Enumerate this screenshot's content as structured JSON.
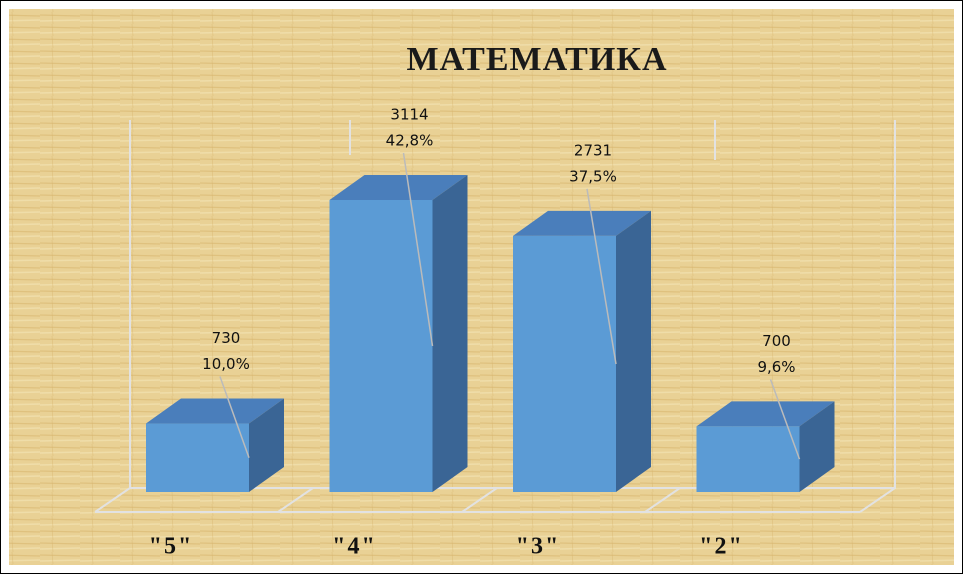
{
  "chart_data": {
    "type": "bar3d",
    "title": "МАТЕМАТИКА",
    "categories": [
      "\"5\"",
      "\"4\"",
      "\"3\"",
      "\"2\""
    ],
    "values": [
      730,
      3114,
      2731,
      700
    ],
    "percents": [
      10.0,
      42.8,
      37.5,
      9.6
    ],
    "percent_labels": [
      "10,0%",
      "42,8%",
      "37,5%",
      "9,6%"
    ],
    "color": "#5b9bd5"
  }
}
